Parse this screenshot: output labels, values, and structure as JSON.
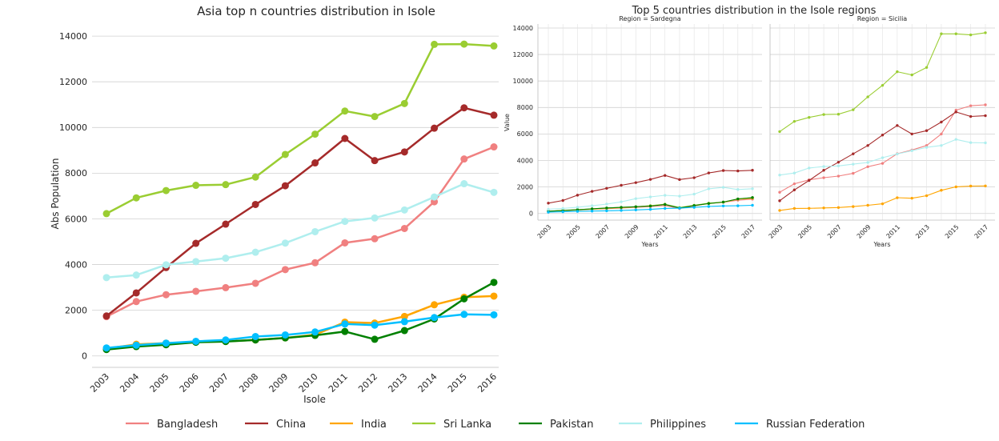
{
  "colors": {
    "Bangladesh": "#f08080",
    "China": "#a52a2a",
    "India": "#ffa500",
    "Sri Lanka": "#9acd32",
    "Pakistan": "#008000",
    "Philippines": "#afeeee",
    "Russian Federation": "#00bfff"
  },
  "legend": [
    "Bangladesh",
    "China",
    "India",
    "Sri Lanka",
    "Pakistan",
    "Philippines",
    "Russian Federation"
  ],
  "chart_data": [
    {
      "type": "line",
      "title": "Asia top n countries distribution in Isole",
      "xlabel": "Isole",
      "ylabel": "Abs Population",
      "x": [
        2003,
        2004,
        2005,
        2006,
        2007,
        2008,
        2009,
        2010,
        2011,
        2012,
        2013,
        2014,
        2015,
        2016
      ],
      "yticks": [
        0,
        2000,
        4000,
        6000,
        8000,
        10000,
        12000,
        14000
      ],
      "ylim": [
        -500,
        14600
      ],
      "grid": true,
      "series": [
        {
          "name": "Bangladesh",
          "values": [
            1720,
            2380,
            2680,
            2830,
            2990,
            3180,
            3780,
            4080,
            4950,
            5130,
            5580,
            6750,
            8620,
            9150
          ]
        },
        {
          "name": "China",
          "values": [
            1750,
            2760,
            3870,
            4930,
            5770,
            6630,
            7450,
            8450,
            9520,
            8550,
            8930,
            9970,
            10860,
            10540
          ]
        },
        {
          "name": "India",
          "values": [
            320,
            510,
            560,
            610,
            640,
            700,
            790,
            930,
            1480,
            1440,
            1730,
            2240,
            2570,
            2620
          ]
        },
        {
          "name": "Sri Lanka",
          "values": [
            6230,
            6920,
            7240,
            7470,
            7500,
            7830,
            8820,
            9710,
            10720,
            10480,
            11050,
            13640,
            13650,
            13570
          ]
        },
        {
          "name": "Pakistan",
          "values": [
            280,
            410,
            490,
            600,
            630,
            700,
            790,
            900,
            1070,
            730,
            1110,
            1620,
            2500,
            3220
          ]
        },
        {
          "name": "Philippines",
          "values": [
            3430,
            3540,
            3990,
            4130,
            4280,
            4540,
            4940,
            5440,
            5890,
            6040,
            6390,
            6960,
            7540,
            7160
          ]
        },
        {
          "name": "Russian Federation",
          "values": [
            350,
            470,
            560,
            640,
            700,
            850,
            920,
            1050,
            1400,
            1350,
            1500,
            1680,
            1820,
            1800
          ]
        }
      ]
    },
    {
      "type": "line",
      "title": "Top 5 countries distribution in the Isole regions",
      "ylabel": "Value",
      "panels": [
        {
          "subtitle": "Region = Sardegna",
          "xlabel": "Years",
          "x": [
            2003,
            2004,
            2005,
            2006,
            2007,
            2008,
            2009,
            2010,
            2011,
            2012,
            2013,
            2014,
            2015,
            2016,
            2017
          ],
          "series": [
            {
              "name": "Bangladesh",
              "values": [
                160,
                220,
                270,
                320,
                360,
                410,
                460,
                520,
                600,
                370,
                560,
                760,
                850,
                1000,
                1080
              ]
            },
            {
              "name": "China",
              "values": [
                780,
                980,
                1380,
                1670,
                1900,
                2130,
                2330,
                2570,
                2870,
                2560,
                2700,
                3060,
                3240,
                3210,
                3260
              ]
            },
            {
              "name": "India",
              "values": [
                150,
                220,
                270,
                330,
                390,
                440,
                500,
                580,
                680,
                430,
                600,
                750,
                850,
                1080,
                1150
              ]
            },
            {
              "name": "Sri Lanka",
              "values": [
                170,
                240,
                290,
                340,
                410,
                460,
                510,
                580,
                700,
                450,
                620,
                780,
                860,
                1100,
                1200
              ]
            },
            {
              "name": "Pakistan",
              "values": [
                170,
                220,
                280,
                350,
                420,
                460,
                510,
                560,
                680,
                420,
                600,
                750,
                860,
                1100,
                1200
              ]
            },
            {
              "name": "Philippines",
              "values": [
                320,
                380,
                470,
                580,
                710,
                880,
                1120,
                1250,
                1370,
                1310,
                1460,
                1860,
                1970,
                1810,
                1870
              ]
            },
            {
              "name": "Russian Federation",
              "values": [
                100,
                130,
                160,
                180,
                200,
                230,
                270,
                310,
                380,
                400,
                460,
                530,
                570,
                580,
                620
              ]
            }
          ]
        },
        {
          "subtitle": "Region = Sicilia",
          "xlabel": "Years",
          "x": [
            2003,
            2004,
            2005,
            2006,
            2007,
            2008,
            2009,
            2010,
            2011,
            2012,
            2013,
            2014,
            2015,
            2016,
            2017
          ],
          "series": [
            {
              "name": "Bangladesh",
              "values": [
                1600,
                2240,
                2540,
                2700,
                2820,
                3030,
                3530,
                3780,
                4510,
                4790,
                5130,
                6000,
                7800,
                8130,
                8200
              ]
            },
            {
              "name": "China",
              "values": [
                960,
                1780,
                2490,
                3260,
                3870,
                4500,
                5130,
                5920,
                6640,
                6000,
                6250,
                6900,
                7660,
                7320,
                7380
              ]
            },
            {
              "name": "India",
              "values": [
                230,
                380,
                390,
                420,
                450,
                520,
                620,
                730,
                1190,
                1150,
                1340,
                1750,
                2010,
                2070,
                2080
              ]
            },
            {
              "name": "Sri Lanka",
              "values": [
                6180,
                6950,
                7250,
                7470,
                7490,
                7830,
                8800,
                9670,
                10700,
                10460,
                11020,
                13560,
                13560,
                13480,
                13640
              ]
            },
            {
              "name": "Philippines",
              "values": [
                2900,
                3050,
                3430,
                3540,
                3590,
                3720,
                3850,
                4210,
                4490,
                4740,
                4990,
                5130,
                5590,
                5350,
                5330
              ]
            }
          ]
        }
      ],
      "panel_yticks": [
        0,
        2000,
        4000,
        6000,
        8000,
        10000,
        12000,
        14000
      ],
      "panel_ylim": [
        -500,
        14300
      ],
      "grid": true
    }
  ]
}
